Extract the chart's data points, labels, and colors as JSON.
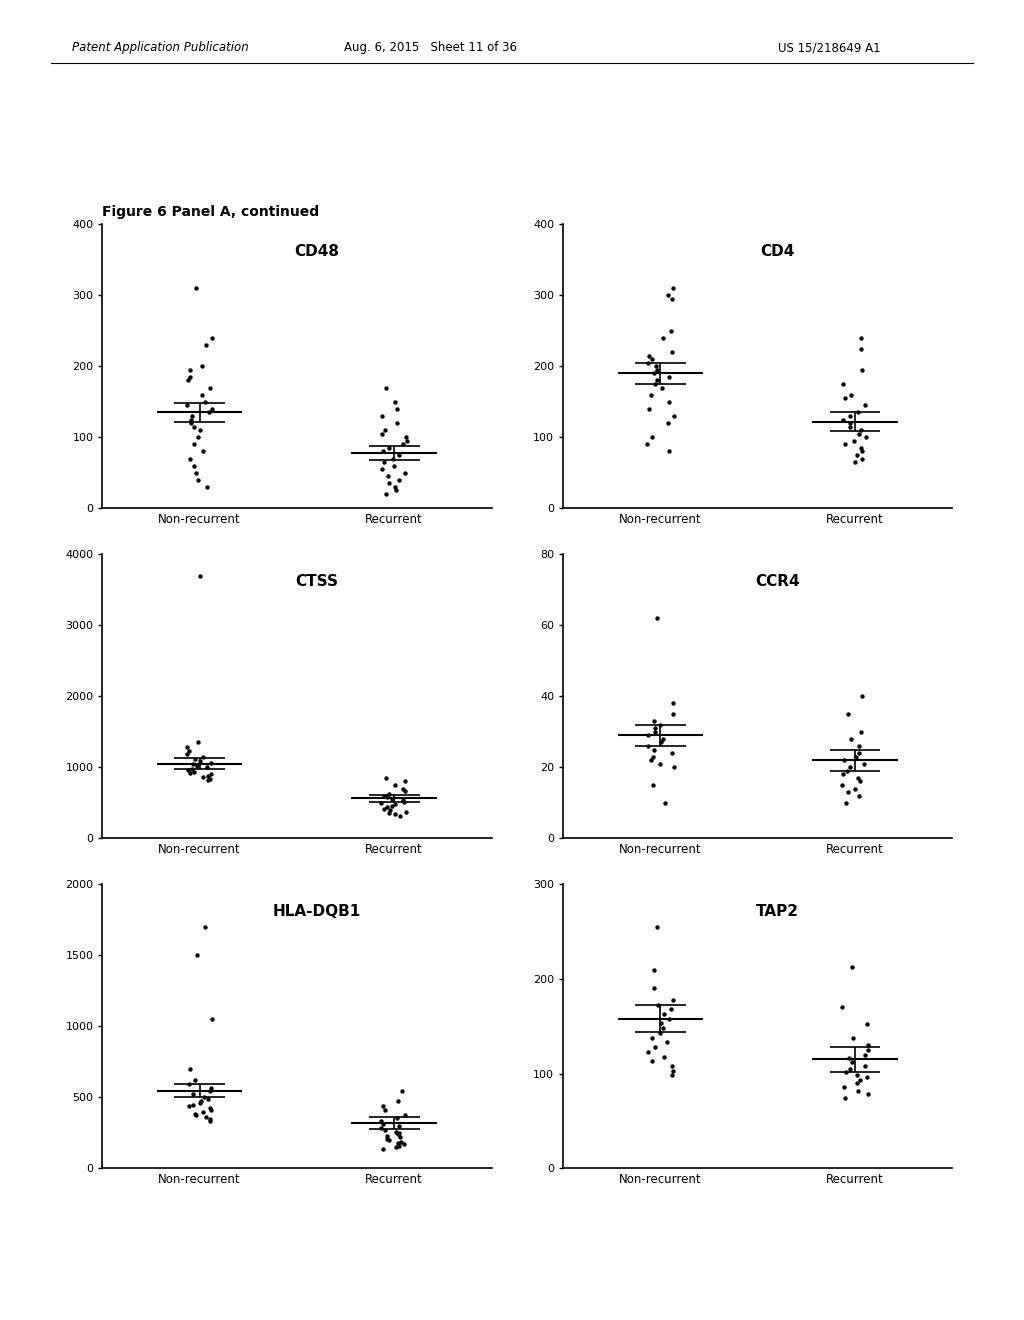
{
  "figure_label": "Figure 6 Panel A, continued",
  "header_left": "Patent Application Publication",
  "header_center": "Aug. 6, 2015   Sheet 11 of 36",
  "header_right": "US 15/218649 A1",
  "panels": [
    {
      "title": "CD48",
      "ylim": [
        0,
        400
      ],
      "yticks": [
        0,
        100,
        200,
        300,
        400
      ],
      "group1_points": [
        310,
        240,
        230,
        200,
        195,
        185,
        180,
        170,
        160,
        150,
        145,
        140,
        135,
        130,
        125,
        120,
        115,
        110,
        100,
        90,
        80,
        70,
        60,
        50,
        40,
        30
      ],
      "group1_mean": 135,
      "group1_sem_upper": 148,
      "group1_sem_lower": 122,
      "group2_points": [
        170,
        150,
        140,
        130,
        120,
        110,
        105,
        100,
        95,
        90,
        85,
        80,
        75,
        70,
        65,
        60,
        55,
        50,
        45,
        40,
        35,
        30,
        25,
        20
      ],
      "group2_mean": 78,
      "group2_sem_upper": 88,
      "group2_sem_lower": 68
    },
    {
      "title": "CD4",
      "ylim": [
        0,
        400
      ],
      "yticks": [
        0,
        100,
        200,
        300,
        400
      ],
      "group1_points": [
        310,
        300,
        295,
        250,
        240,
        220,
        215,
        210,
        205,
        200,
        195,
        190,
        185,
        180,
        175,
        170,
        160,
        150,
        140,
        130,
        120,
        100,
        90,
        80
      ],
      "group1_mean": 190,
      "group1_sem_upper": 205,
      "group1_sem_lower": 175,
      "group2_points": [
        240,
        225,
        195,
        175,
        160,
        155,
        145,
        135,
        130,
        125,
        120,
        115,
        110,
        105,
        100,
        95,
        90,
        85,
        80,
        75,
        70,
        65
      ],
      "group2_mean": 122,
      "group2_sem_upper": 135,
      "group2_sem_lower": 109
    },
    {
      "title": "CTSS",
      "ylim": [
        0,
        4000
      ],
      "yticks": [
        0,
        1000,
        2000,
        3000,
        4000
      ],
      "group1_points": [
        3700,
        1350,
        1280,
        1230,
        1180,
        1150,
        1120,
        1090,
        1060,
        1040,
        1020,
        1000,
        980,
        960,
        940,
        920,
        900,
        880,
        860,
        840,
        820
      ],
      "group1_mean": 1050,
      "group1_sem_upper": 1130,
      "group1_sem_lower": 970,
      "group2_points": [
        850,
        800,
        750,
        700,
        660,
        630,
        600,
        575,
        555,
        535,
        515,
        495,
        475,
        455,
        435,
        415,
        395,
        375,
        355,
        335,
        315
      ],
      "group2_mean": 565,
      "group2_sem_upper": 615,
      "group2_sem_lower": 515
    },
    {
      "title": "CCR4",
      "ylim": [
        0,
        80
      ],
      "yticks": [
        0,
        20,
        40,
        60,
        80
      ],
      "group1_points": [
        62,
        38,
        35,
        33,
        32,
        31,
        30,
        29,
        28,
        27,
        26,
        25,
        24,
        23,
        22,
        21,
        20,
        15,
        10
      ],
      "group1_mean": 29,
      "group1_sem_upper": 32,
      "group1_sem_lower": 26,
      "group2_points": [
        40,
        35,
        30,
        28,
        26,
        24,
        23,
        22,
        21,
        20,
        19,
        18,
        17,
        16,
        15,
        14,
        13,
        12,
        10
      ],
      "group2_mean": 22,
      "group2_sem_upper": 25,
      "group2_sem_lower": 19
    },
    {
      "title": "HLA-DQB1",
      "ylim": [
        0,
        2000
      ],
      "yticks": [
        0,
        500,
        1000,
        1500,
        2000
      ],
      "group1_points": [
        1700,
        1500,
        1050,
        700,
        620,
        590,
        565,
        545,
        525,
        505,
        490,
        475,
        460,
        448,
        435,
        422,
        410,
        398,
        385,
        372,
        360,
        348,
        335
      ],
      "group1_mean": 545,
      "group1_sem_upper": 590,
      "group1_sem_lower": 500,
      "group2_points": [
        545,
        475,
        435,
        408,
        378,
        355,
        335,
        315,
        295,
        282,
        270,
        258,
        248,
        238,
        228,
        218,
        208,
        198,
        188,
        178,
        168,
        158,
        148,
        138
      ],
      "group2_mean": 318,
      "group2_sem_upper": 358,
      "group2_sem_lower": 278
    },
    {
      "title": "TAP2",
      "ylim": [
        0,
        300
      ],
      "yticks": [
        0,
        100,
        200,
        300
      ],
      "group1_points": [
        255,
        210,
        190,
        178,
        172,
        168,
        163,
        158,
        153,
        148,
        143,
        138,
        133,
        128,
        123,
        118,
        113,
        108,
        103,
        98
      ],
      "group1_mean": 158,
      "group1_sem_upper": 172,
      "group1_sem_lower": 144,
      "group2_points": [
        213,
        170,
        152,
        138,
        130,
        125,
        120,
        116,
        112,
        108,
        105,
        102,
        99,
        96,
        93,
        90,
        86,
        82,
        78,
        74
      ],
      "group2_mean": 115,
      "group2_sem_upper": 128,
      "group2_sem_lower": 102
    }
  ]
}
